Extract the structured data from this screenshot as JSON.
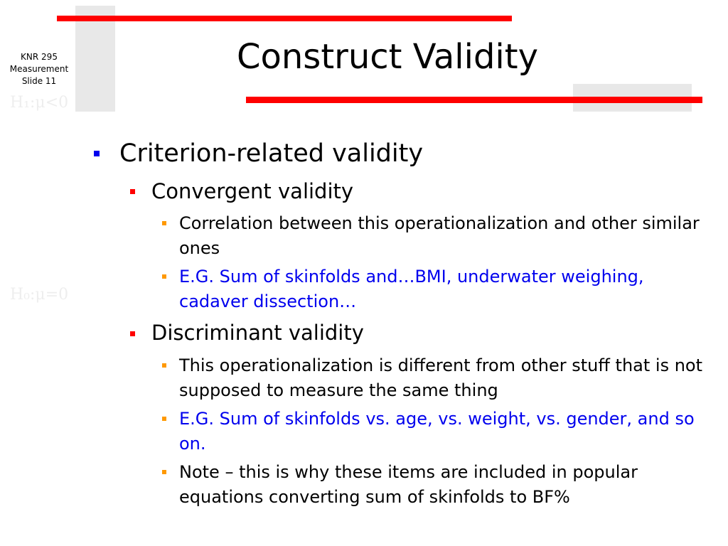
{
  "sidebar": {
    "course": "KNR 295",
    "subject": "Measurement",
    "slide": "Slide 11"
  },
  "watermark": {
    "eq1": "H₁:μ<0",
    "eq2": "H₀:μ=0"
  },
  "title": "Construct Validity",
  "colors": {
    "accent": "#ff0000",
    "level1_bullet": "#0000ee",
    "level3_bullet": "#ff9900",
    "example_text": "#0000ee"
  },
  "bullets": {
    "criterion": "Criterion-related validity",
    "convergent": "Convergent validity",
    "conv_1": "Correlation between this operationalization and other similar ones",
    "conv_2": "E.G. Sum of skinfolds and…BMI, underwater weighing, cadaver dissection…",
    "discriminant": "Discriminant validity",
    "disc_1": "This operationalization is different from other stuff that is not supposed to measure the same thing",
    "disc_2": "E.G. Sum of skinfolds vs. age, vs. weight, vs. gender, and so on.",
    "disc_3": "Note – this is why these items are included in popular equations converting sum of skinfolds to BF%"
  }
}
